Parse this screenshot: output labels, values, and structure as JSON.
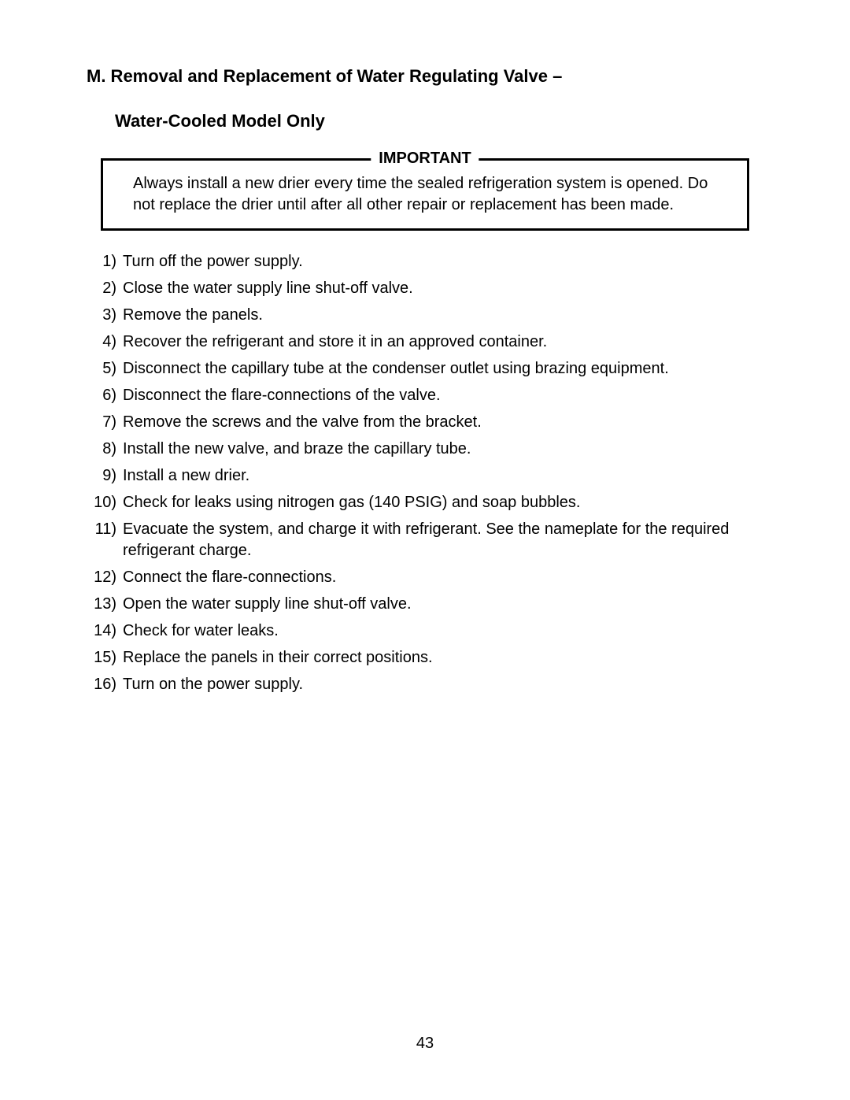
{
  "heading": "M. Removal and Replacement of Water Regulating Valve –",
  "subheading": "Water-Cooled Model Only",
  "important": {
    "label": "IMPORTANT",
    "text": "Always install a new drier every time the sealed refrigeration system is opened. Do not replace the drier until after all other repair or replacement has been made."
  },
  "steps": [
    {
      "num": "1)",
      "text": "Turn off the power supply."
    },
    {
      "num": "2)",
      "text": "Close the water supply line shut-off valve."
    },
    {
      "num": "3)",
      "text": "Remove the panels."
    },
    {
      "num": "4)",
      "text": "Recover the refrigerant and store it in an approved container."
    },
    {
      "num": "5)",
      "text": "Disconnect the capillary tube at the condenser outlet using brazing equipment."
    },
    {
      "num": "6)",
      "text": "Disconnect the flare-connections of the valve."
    },
    {
      "num": "7)",
      "text": "Remove the screws and the valve from the bracket."
    },
    {
      "num": "8)",
      "text": "Install the new valve, and braze the capillary tube."
    },
    {
      "num": "9)",
      "text": "Install a new drier."
    },
    {
      "num": "10)",
      "text": "Check for leaks using nitrogen gas (140 PSIG) and soap bubbles."
    },
    {
      "num": "11)",
      "text": "Evacuate the system, and charge it with refrigerant. See the nameplate for the required refrigerant charge."
    },
    {
      "num": "12)",
      "text": "Connect the flare-connections."
    },
    {
      "num": "13)",
      "text": "Open the water supply line shut-off valve."
    },
    {
      "num": "14)",
      "text": "Check for water leaks."
    },
    {
      "num": "15)",
      "text": "Replace the panels in their correct positions."
    },
    {
      "num": "16)",
      "text": "Turn on the power supply."
    }
  ],
  "pageNumber": "43"
}
